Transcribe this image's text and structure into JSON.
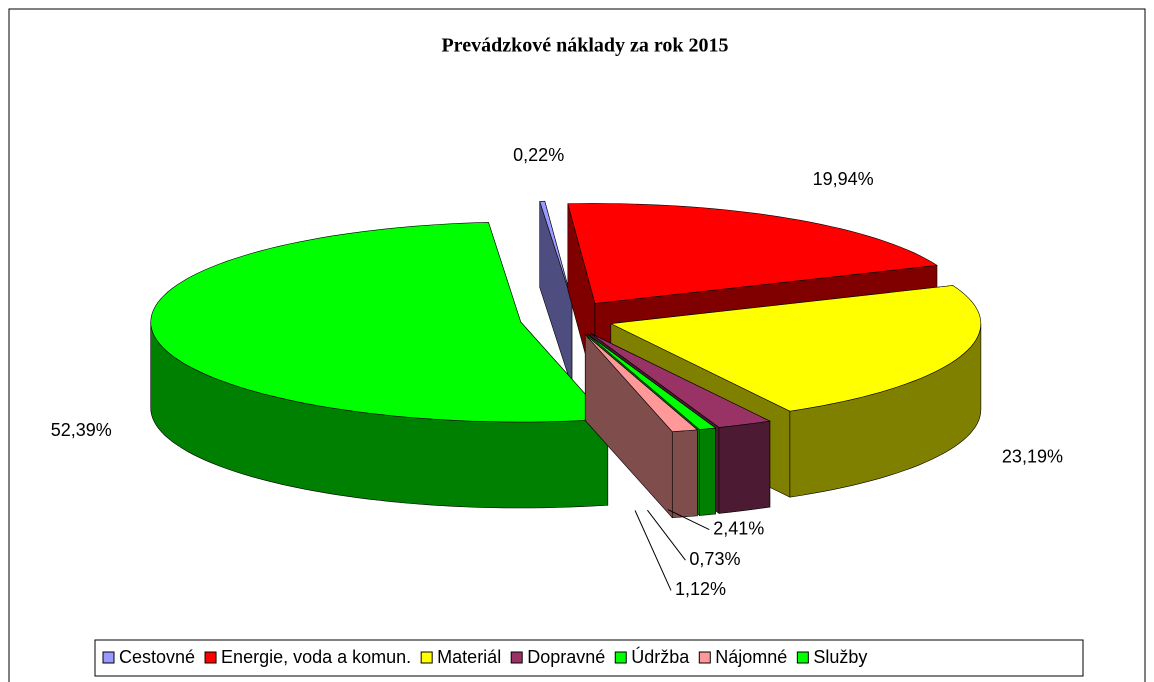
{
  "chart_data": {
    "type": "pie",
    "title": "Prevádzkové náklady za rok 2015",
    "categories": [
      "Cestovné",
      "Energie, voda a komun.",
      "Materiál",
      "Dopravné",
      "Údržba",
      "Nájomné",
      "Služby"
    ],
    "values": [
      0.22,
      19.94,
      23.19,
      2.41,
      0.73,
      1.12,
      52.39
    ],
    "value_labels": [
      "0,22%",
      "19,94%",
      "23,19%",
      "2,41%",
      "0,73%",
      "1,12%",
      "52,39%"
    ],
    "colors": [
      "#9999ff",
      "#ff0000",
      "#ffff00",
      "#993366",
      "#00ff00",
      "#ff9999",
      "#00ff00"
    ],
    "legend": "bottom"
  }
}
